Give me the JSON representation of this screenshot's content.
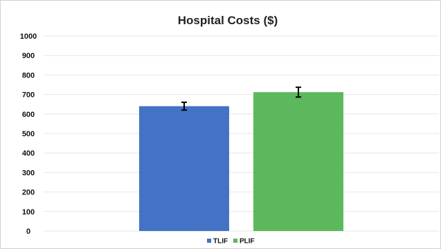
{
  "chart_data": {
    "type": "bar",
    "title": "Hospital Costs ($)",
    "xlabel": "",
    "ylabel": "",
    "ylim": [
      0,
      1000
    ],
    "ytick_step": 100,
    "yticks": [
      "0",
      "100",
      "200",
      "300",
      "400",
      "500",
      "600",
      "700",
      "800",
      "900",
      "1000"
    ],
    "grid": true,
    "legend_position": "bottom",
    "series": [
      {
        "name": "TLIF",
        "value": 640,
        "error": 20,
        "color": "#4472c4"
      },
      {
        "name": "PLIF",
        "value": 712,
        "error": 25,
        "color": "#5cb85c"
      }
    ]
  }
}
